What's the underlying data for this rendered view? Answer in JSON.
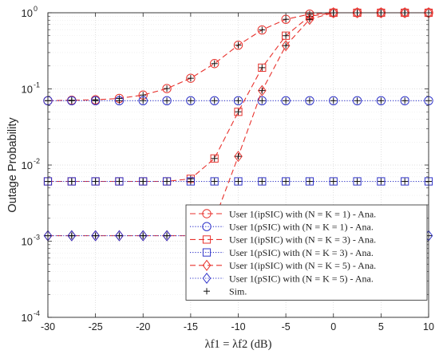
{
  "chart_data": {
    "type": "line",
    "xlabel": "λf1 = λf2 (dB)",
    "ylabel": "Outage Probability",
    "xlim": [
      -30,
      10
    ],
    "ylim": [
      0.0001,
      1
    ],
    "yscale": "log",
    "grid": true,
    "minor_grid": true,
    "legend_position": "bottom-right",
    "x_ticks": [
      -30,
      -25,
      -20,
      -15,
      -10,
      -5,
      0,
      5,
      10
    ],
    "x_tick_labels": [
      "-30",
      "-25",
      "-20",
      "-15",
      "-10",
      "-5",
      "0",
      "5",
      "10"
    ],
    "y_tick_labels": [
      {
        "base": "10",
        "exp": "0"
      },
      {
        "base": "10",
        "exp": "-1"
      },
      {
        "base": "10",
        "exp": "-2"
      },
      {
        "base": "10",
        "exp": "-3"
      },
      {
        "base": "10",
        "exp": "-4"
      }
    ],
    "colors": {
      "ipsic": "#e8322d",
      "psic": "#2f33c9",
      "sim": "#111111"
    },
    "x": [
      -30,
      -27.5,
      -25,
      -22.5,
      -20,
      -17.5,
      -15,
      -12.5,
      -10,
      -7.5,
      -5,
      -2.5,
      0,
      2.5,
      5,
      7.5,
      10
    ],
    "series": [
      {
        "name": "User 1(ipSIC) with (N = K = 1) - Ana.",
        "color_key": "ipsic",
        "marker": "circle",
        "dash": "dashed",
        "values": [
          0.07,
          0.071,
          0.072,
          0.075,
          0.083,
          0.101,
          0.138,
          0.215,
          0.375,
          0.595,
          0.82,
          0.96,
          1.0,
          1.0,
          1.0,
          1.0,
          1.0
        ]
      },
      {
        "name": "User 1(pSIC) with (N = K = 1) - Ana.",
        "color_key": "psic",
        "marker": "circle",
        "dash": "dotted",
        "values": [
          0.07,
          0.07,
          0.07,
          0.07,
          0.07,
          0.07,
          0.07,
          0.07,
          0.07,
          0.07,
          0.07,
          0.07,
          0.07,
          0.07,
          0.07,
          0.07,
          0.07
        ]
      },
      {
        "name": "User 1(ipSIC) with (N = K = 3) - Ana.",
        "color_key": "ipsic",
        "marker": "square",
        "dash": "dashed",
        "values": [
          0.0061,
          0.0061,
          0.0061,
          0.0061,
          0.0061,
          0.0061,
          0.0066,
          0.0122,
          0.05,
          0.19,
          0.5,
          0.9,
          1.0,
          1.0,
          1.0,
          1.0,
          1.0
        ]
      },
      {
        "name": "User 1(pSIC) with (N = K = 3) - Ana.",
        "color_key": "psic",
        "marker": "square",
        "dash": "dotted",
        "values": [
          0.0061,
          0.0061,
          0.0061,
          0.0061,
          0.0061,
          0.0061,
          0.0061,
          0.0061,
          0.0061,
          0.0061,
          0.0061,
          0.0061,
          0.0061,
          0.0061,
          0.0061,
          0.0061,
          0.0061
        ]
      },
      {
        "name": "User 1(ipSIC) with (N = K = 5) - Ana.",
        "color_key": "ipsic",
        "marker": "diamond",
        "dash": "dashed",
        "values": [
          0.00118,
          0.00118,
          0.00118,
          0.00118,
          0.00118,
          0.00118,
          0.00118,
          0.0019,
          0.013,
          0.095,
          0.37,
          0.82,
          1.0,
          1.0,
          1.0,
          1.0,
          1.0
        ]
      },
      {
        "name": "User 1(pSIC) with (N = K = 5) - Ana.",
        "color_key": "psic",
        "marker": "diamond",
        "dash": "dotted",
        "values": [
          0.00118,
          0.00118,
          0.00118,
          0.00118,
          0.00118,
          0.00118,
          0.00118,
          0.00118,
          0.00118,
          0.00118,
          0.00118,
          0.00118,
          0.00118,
          0.00118,
          0.00118,
          0.00118,
          0.00118
        ]
      }
    ],
    "sim_legend": "Sim.",
    "legend": [
      "User 1(ipSIC) with (N = K = 1) - Ana.",
      "User 1(pSIC) with (N = K = 1) - Ana.",
      "User 1(ipSIC) with (N = K = 3) - Ana.",
      "User 1(pSIC) with (N = K = 3) - Ana.",
      "User 1(ipSIC) with (N = K = 5) - Ana.",
      "User 1(pSIC) with (N = K = 5) - Ana.",
      "Sim."
    ]
  }
}
